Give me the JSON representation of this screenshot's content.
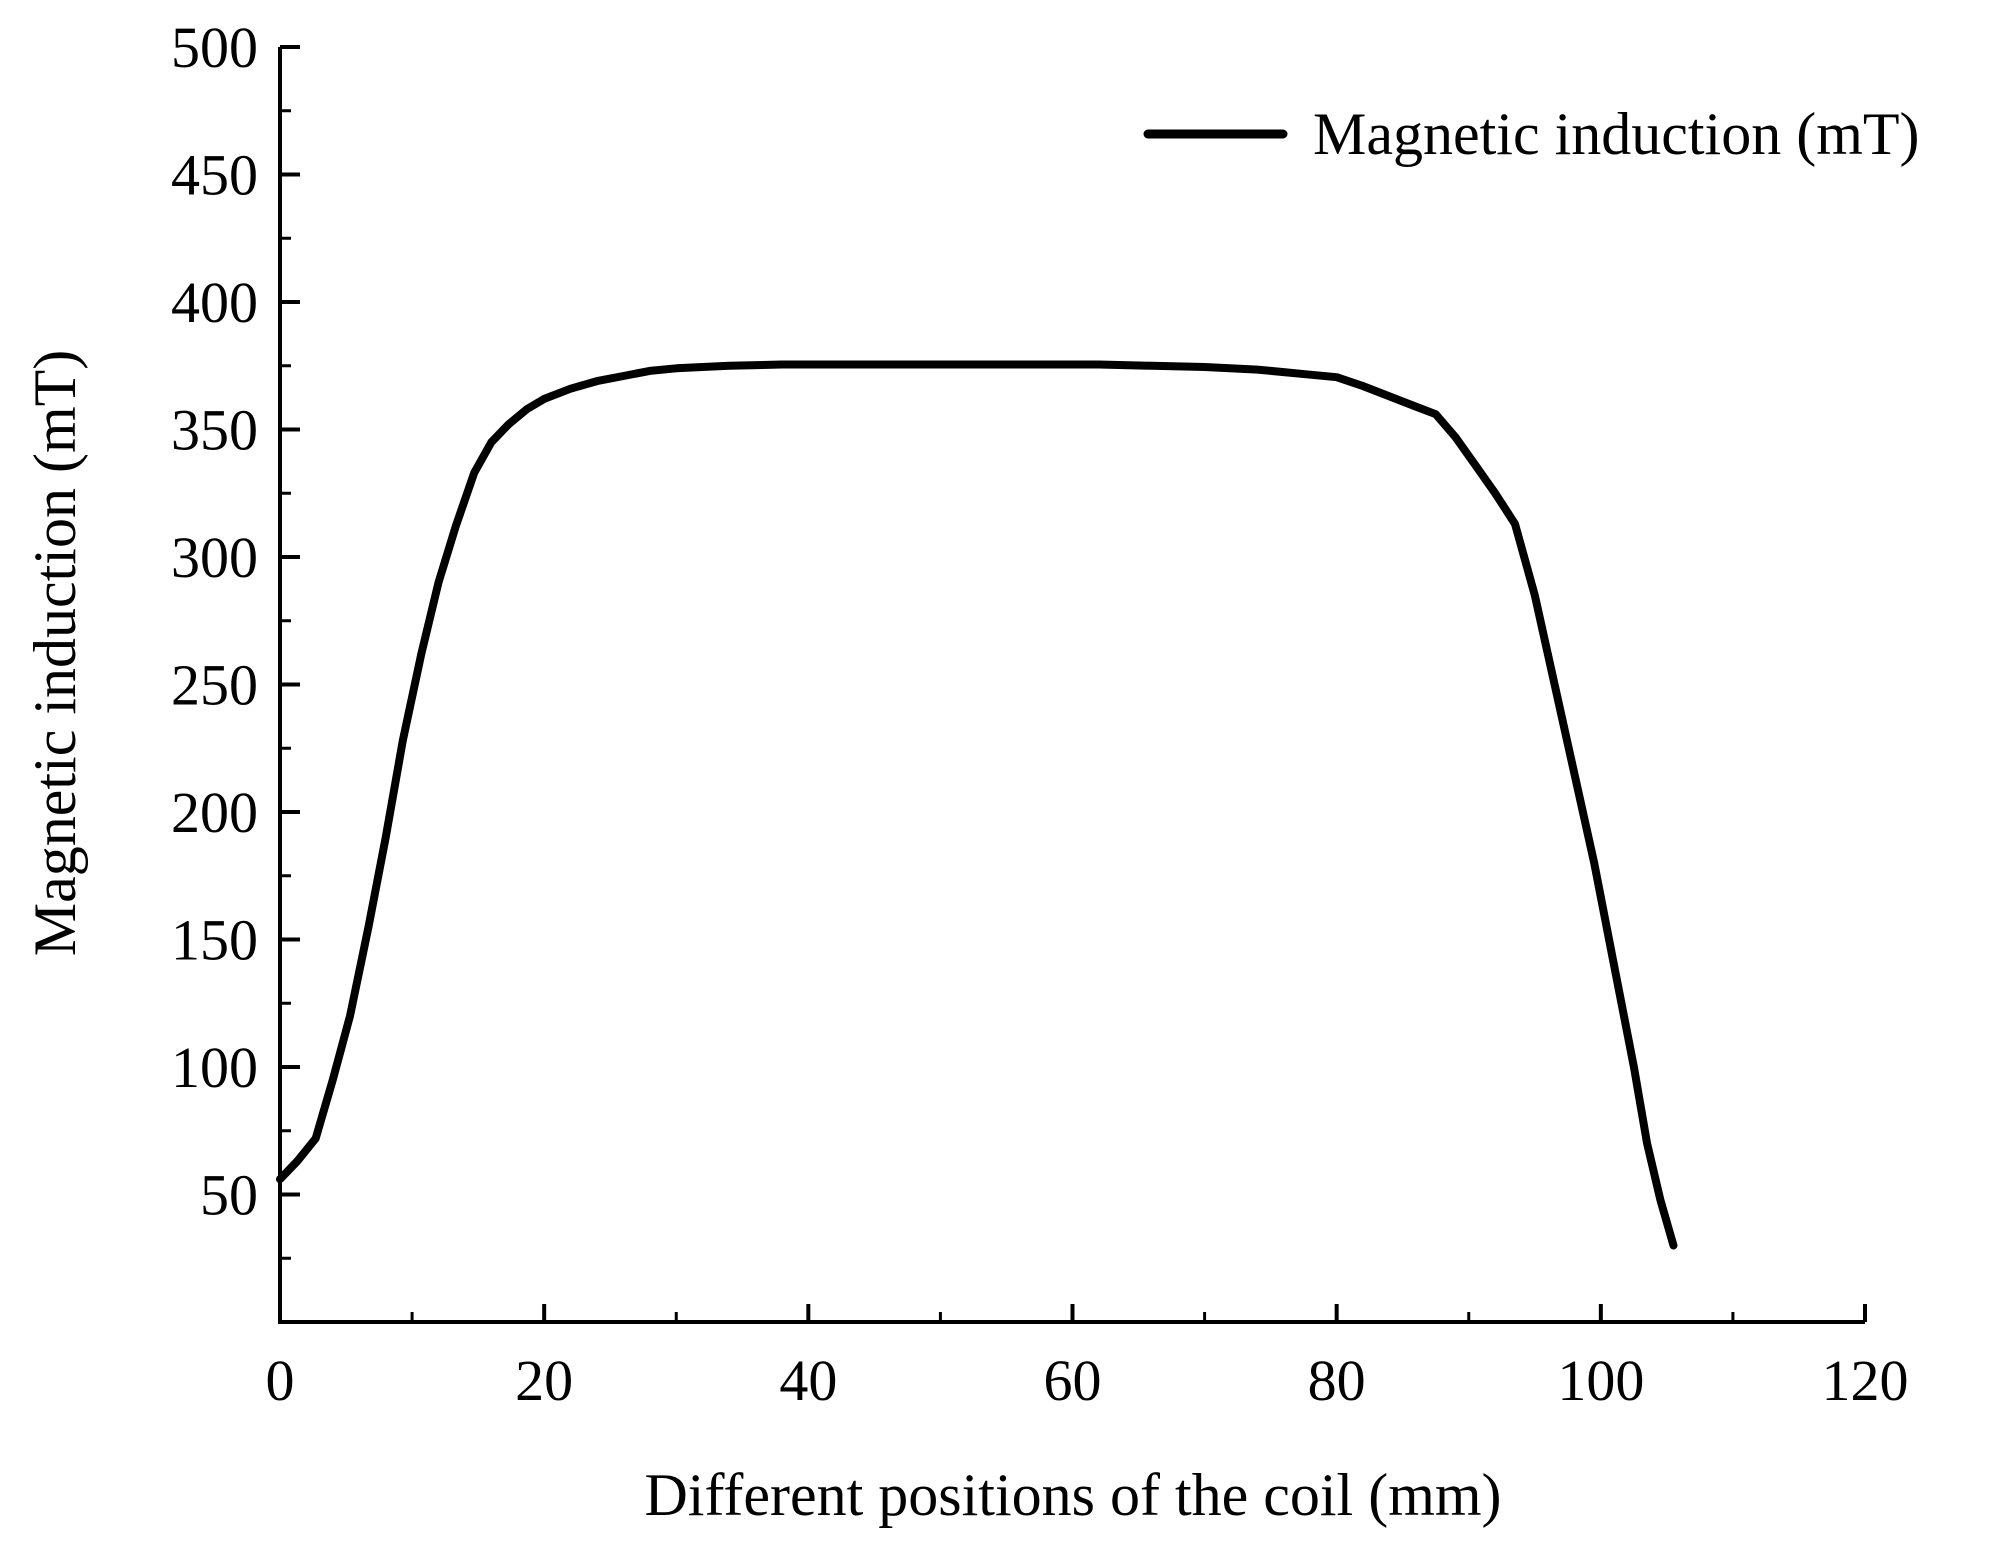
{
  "chart_data": {
    "type": "line",
    "title": "",
    "xlabel": "Different positions of the coil (mm)",
    "ylabel": "Magnetic induction (mT)",
    "xlim": [
      0,
      120
    ],
    "ylim": [
      0,
      500
    ],
    "x_ticks": [
      0,
      20,
      40,
      60,
      80,
      100,
      120
    ],
    "y_ticks": [
      50,
      100,
      150,
      200,
      250,
      300,
      350,
      400,
      450,
      500
    ],
    "x_tick_labels": [
      "0",
      "20",
      "40",
      "60",
      "80",
      "100",
      "120"
    ],
    "y_tick_labels": [
      "50",
      "100",
      "150",
      "200",
      "250",
      "300",
      "350",
      "400",
      "450",
      "500"
    ],
    "grid": false,
    "legend_position": "top-right",
    "line_color": "#000000",
    "series": [
      {
        "name": "Magnetic induction (mT)",
        "x": [
          0,
          1.3,
          2.7,
          4,
          5.3,
          6.7,
          8,
          9.3,
          10.7,
          12,
          13.3,
          14.7,
          16,
          17.3,
          18.7,
          20,
          22,
          24,
          26,
          28,
          30,
          34,
          38,
          42,
          46,
          50,
          54,
          58,
          62,
          66,
          70,
          74,
          78,
          80,
          82,
          84,
          86,
          87.5,
          89,
          90.5,
          92,
          93.5,
          95,
          96.5,
          98,
          99.5,
          101,
          102.5,
          103.5,
          104.5,
          105.5
        ],
        "y": [
          56,
          63,
          72,
          95,
          120,
          155,
          190,
          228,
          262,
          290,
          312,
          333,
          345,
          352,
          358,
          362,
          366,
          369,
          371,
          373,
          374,
          375,
          375.5,
          375.5,
          375.5,
          375.5,
          375.5,
          375.5,
          375.5,
          375,
          374.5,
          373.5,
          371.5,
          370.5,
          367,
          363,
          359,
          356,
          347,
          336,
          325,
          313,
          285,
          250,
          215,
          180,
          140,
          100,
          70,
          48,
          30
        ]
      }
    ]
  }
}
